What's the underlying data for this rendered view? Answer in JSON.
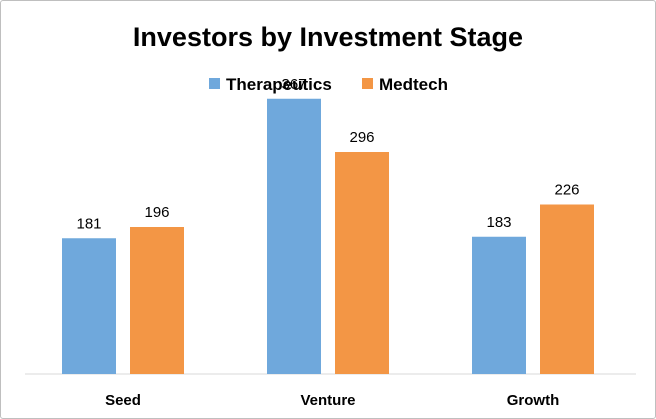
{
  "chart_data": {
    "type": "bar",
    "title": "Investors by Investment Stage",
    "categories": [
      "Seed",
      "Venture",
      "Growth"
    ],
    "series": [
      {
        "name": "Therapeutics",
        "color": "#6fa8dc",
        "values": [
          181,
          367,
          183
        ]
      },
      {
        "name": "Medtech",
        "color": "#f39645",
        "values": [
          196,
          296,
          226
        ]
      }
    ],
    "ylim": [
      0,
      400
    ],
    "grid": false,
    "legend_position": "top",
    "data_labels": true
  }
}
